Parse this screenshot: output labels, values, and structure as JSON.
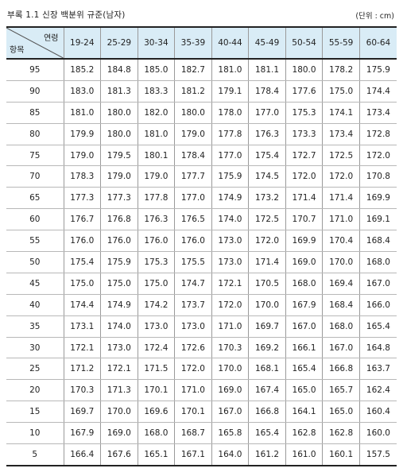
{
  "caption": "부록 1.1  신장 백분위 규준(남자)",
  "unit": "(단위 : cm)",
  "table": {
    "corner_top": "연령",
    "corner_bottom": "항목",
    "age_groups": [
      "19-24",
      "25-29",
      "30-34",
      "35-39",
      "40-44",
      "45-49",
      "50-54",
      "55-59",
      "60-64"
    ],
    "rows": [
      {
        "percentile": "95",
        "values": [
          "185.2",
          "184.8",
          "185.0",
          "182.7",
          "181.0",
          "181.1",
          "180.0",
          "178.2",
          "175.9"
        ]
      },
      {
        "percentile": "90",
        "values": [
          "183.0",
          "181.3",
          "183.3",
          "181.2",
          "179.1",
          "178.4",
          "177.6",
          "175.0",
          "174.4"
        ]
      },
      {
        "percentile": "85",
        "values": [
          "181.0",
          "180.0",
          "182.0",
          "180.0",
          "178.0",
          "177.0",
          "175.3",
          "174.1",
          "173.4"
        ]
      },
      {
        "percentile": "80",
        "values": [
          "179.9",
          "180.0",
          "181.0",
          "179.0",
          "177.8",
          "176.3",
          "173.3",
          "173.4",
          "172.8"
        ]
      },
      {
        "percentile": "75",
        "values": [
          "179.0",
          "179.5",
          "180.1",
          "178.4",
          "177.0",
          "175.4",
          "172.7",
          "172.5",
          "172.0"
        ]
      },
      {
        "percentile": "70",
        "values": [
          "178.3",
          "179.0",
          "179.0",
          "177.7",
          "175.9",
          "174.5",
          "172.0",
          "172.0",
          "170.8"
        ]
      },
      {
        "percentile": "65",
        "values": [
          "177.3",
          "177.3",
          "177.8",
          "177.0",
          "174.9",
          "173.2",
          "171.4",
          "171.4",
          "169.9"
        ]
      },
      {
        "percentile": "60",
        "values": [
          "176.7",
          "176.8",
          "176.3",
          "176.5",
          "174.0",
          "172.5",
          "170.7",
          "171.0",
          "169.1"
        ]
      },
      {
        "percentile": "55",
        "values": [
          "176.0",
          "176.0",
          "176.0",
          "176.0",
          "173.0",
          "172.0",
          "169.9",
          "170.4",
          "168.4"
        ]
      },
      {
        "percentile": "50",
        "values": [
          "175.4",
          "175.9",
          "175.3",
          "175.5",
          "173.0",
          "171.4",
          "169.0",
          "170.0",
          "168.0"
        ]
      },
      {
        "percentile": "45",
        "values": [
          "175.0",
          "175.0",
          "175.0",
          "174.7",
          "172.1",
          "170.5",
          "168.0",
          "169.4",
          "167.0"
        ]
      },
      {
        "percentile": "40",
        "values": [
          "174.4",
          "174.9",
          "174.2",
          "173.7",
          "172.0",
          "170.0",
          "167.9",
          "168.4",
          "166.0"
        ]
      },
      {
        "percentile": "35",
        "values": [
          "173.1",
          "174.0",
          "173.0",
          "173.0",
          "171.0",
          "169.7",
          "167.0",
          "168.0",
          "165.4"
        ]
      },
      {
        "percentile": "30",
        "values": [
          "172.1",
          "173.0",
          "172.4",
          "172.6",
          "170.3",
          "169.2",
          "166.1",
          "167.0",
          "164.8"
        ]
      },
      {
        "percentile": "25",
        "values": [
          "171.2",
          "172.1",
          "171.5",
          "172.0",
          "170.0",
          "168.1",
          "165.4",
          "166.8",
          "163.7"
        ]
      },
      {
        "percentile": "20",
        "values": [
          "170.3",
          "171.3",
          "170.1",
          "171.0",
          "169.0",
          "167.4",
          "165.0",
          "165.7",
          "162.4"
        ]
      },
      {
        "percentile": "15",
        "values": [
          "169.7",
          "170.0",
          "169.6",
          "170.1",
          "167.0",
          "166.8",
          "164.1",
          "165.0",
          "160.4"
        ]
      },
      {
        "percentile": "10",
        "values": [
          "167.9",
          "169.0",
          "168.0",
          "168.7",
          "165.8",
          "165.4",
          "162.8",
          "162.8",
          "160.0"
        ]
      },
      {
        "percentile": "5",
        "values": [
          "166.4",
          "167.6",
          "165.1",
          "167.1",
          "164.0",
          "161.2",
          "161.0",
          "160.1",
          "157.5"
        ]
      }
    ]
  }
}
